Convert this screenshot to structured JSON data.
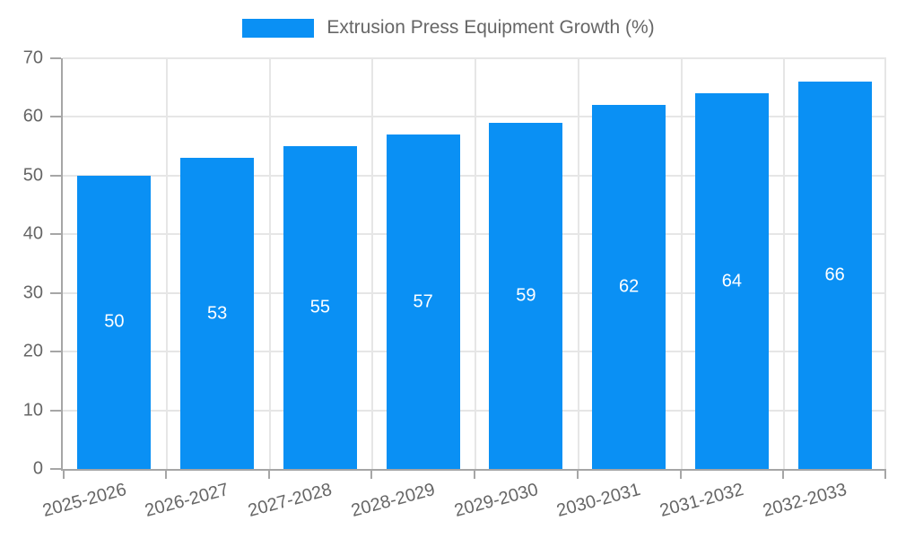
{
  "chart_data": {
    "type": "bar",
    "title": "Extrusion Press Equipment Growth (%)",
    "categories": [
      "2025-2026",
      "2026-2027",
      "2027-2028",
      "2028-2029",
      "2029-2030",
      "2030-2031",
      "2031-2032",
      "2032-2033"
    ],
    "values": [
      50,
      53,
      55,
      57,
      59,
      62,
      64,
      66
    ],
    "xlabel": "",
    "ylabel": "",
    "ylim": [
      0,
      70
    ],
    "yticks": [
      0,
      10,
      20,
      30,
      40,
      50,
      60,
      70
    ],
    "grid": true,
    "legend_position": "top-center",
    "bar_color": "#0a90f4",
    "value_label_color": "#ffffff"
  },
  "colors": {
    "axis_line": "#a6a6a6",
    "grid_line": "#e6e6e6",
    "tick_label": "#666666",
    "legend_text": "#666666",
    "background": "#ffffff"
  }
}
